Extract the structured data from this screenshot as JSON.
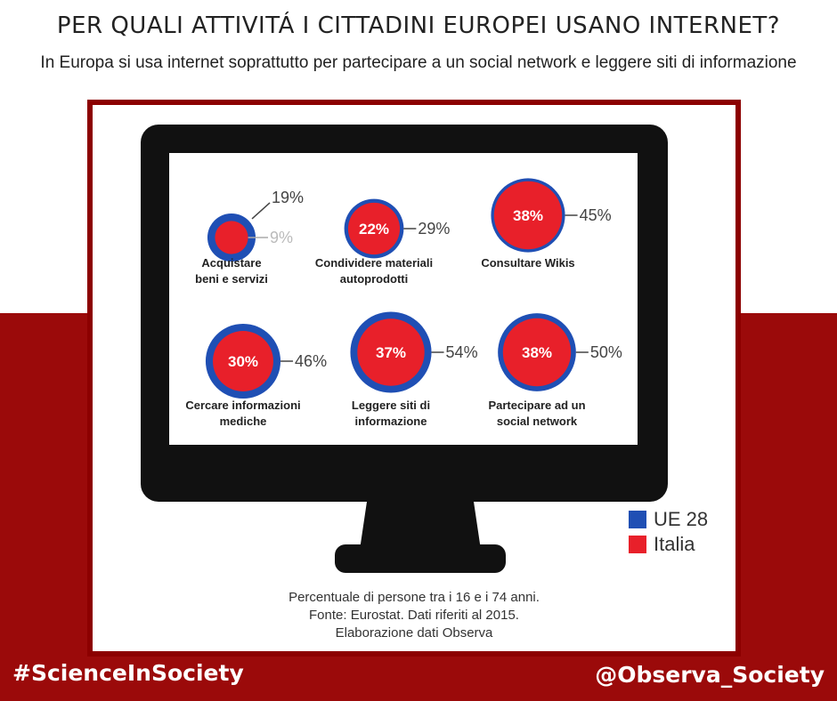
{
  "header": {
    "title": "PER QUALI ATTIVITÁ I CITTADINI EUROPEI USANO INTERNET?",
    "subtitle": "In Europa si usa internet soprattutto per partecipare a un social network e leggere siti di informazione"
  },
  "legend": {
    "items": [
      {
        "label": "UE 28",
        "color": "#1f4fb4"
      },
      {
        "label": "Italia",
        "color": "#e8202a"
      }
    ]
  },
  "footnote": {
    "line1": "Percentuale di persone tra i 16 e i 74 anni.",
    "line2": "Fonte: Eurostat. Dati riferiti al 2015.",
    "line3": "Elaborazione dati Observa"
  },
  "footer": {
    "hashtag": "#ScienceInSociety",
    "handle": "@Observa_Society"
  },
  "colors": {
    "ue": "#1f4fb4",
    "italia": "#e8202a",
    "frame": "#8c0000",
    "band": "#9b0a0a",
    "monitor": "#111111"
  },
  "chart_data": {
    "type": "bubble",
    "title": "PER QUALI ATTIVITÁ I CITTADINI EUROPEI USANO INTERNET?",
    "subtitle": "In Europa si usa internet soprattutto per partecipare a un social network e leggere siti di informazione",
    "series": [
      {
        "name": "UE 28",
        "values": [
          19,
          29,
          45,
          46,
          54,
          50
        ]
      },
      {
        "name": "Italia",
        "values": [
          9,
          22,
          38,
          30,
          37,
          38
        ]
      }
    ],
    "categories": [
      {
        "label_lines": [
          "Acquistare",
          "beni e servizi"
        ],
        "ue": 19,
        "italia": 9,
        "ue_label": "19%",
        "italia_label": "9%"
      },
      {
        "label_lines": [
          "Condividere materiali",
          "autoprodotti"
        ],
        "ue": 29,
        "italia": 22,
        "ue_label": "29%",
        "italia_label": "22%"
      },
      {
        "label_lines": [
          "Consultare Wikis"
        ],
        "ue": 45,
        "italia": 38,
        "ue_label": "45%",
        "italia_label": "38%"
      },
      {
        "label_lines": [
          "Cercare informazioni",
          "mediche"
        ],
        "ue": 46,
        "italia": 30,
        "ue_label": "46%",
        "italia_label": "30%"
      },
      {
        "label_lines": [
          "Leggere siti di",
          "informazione"
        ],
        "ue": 54,
        "italia": 37,
        "ue_label": "54%",
        "italia_label": "37%"
      },
      {
        "label_lines": [
          "Partecipare ad un",
          "social network"
        ],
        "ue": 50,
        "italia": 38,
        "ue_label": "50%",
        "italia_label": "38%"
      }
    ]
  }
}
